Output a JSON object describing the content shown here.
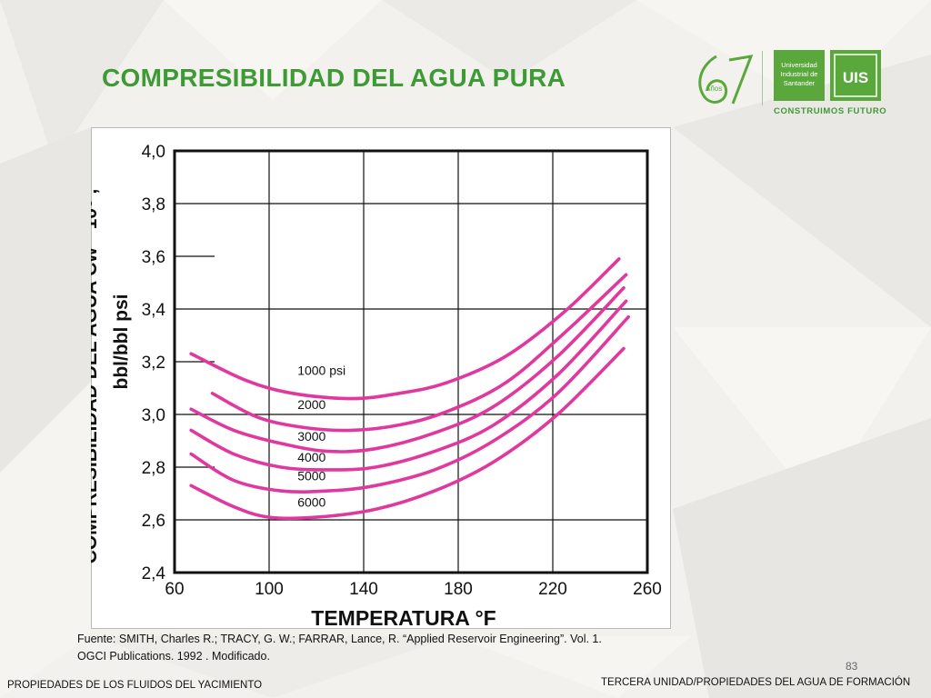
{
  "slide": {
    "title": "COMPRESIBILIDAD DEL AGUA PURA",
    "logo": {
      "anniversary_text": "Años",
      "university_name": "Universidad Industrial de Santander",
      "monogram": "UIS",
      "slogan": "CONSTRUIMOS FUTURO",
      "brand_color": "#5aa83c"
    },
    "caption_line1": "Fuente: SMITH, Charles R.; TRACY, G. W.; FARRAR, Lance, R. “Applied Reservoir Engineering”. Vol. 1.",
    "caption_line2": "OGCI Publications. 1992 . Modificado.",
    "page_number": "83",
    "footer_left": "PROPIEDADES DE LOS FLUIDOS DEL YACIMIENTO",
    "footer_right": "TERCERA UNIDAD/PROPIEDADES DEL AGUA DE FORMACIÓN"
  },
  "chart_data": {
    "type": "line",
    "xlabel": "TEMPERATURA °F",
    "ylabel_line1": "COMPRESIBILIDAD DEL AGUA Cw * 10⁶ ,",
    "ylabel_line2": "bbl/bbl psi",
    "xlim": [
      60,
      260
    ],
    "ylim": [
      2.4,
      4.0
    ],
    "x_ticks": [
      60,
      100,
      140,
      180,
      220,
      260
    ],
    "x_tick_labels": [
      "60",
      "100",
      "140",
      "180",
      "220",
      "260"
    ],
    "y_ticks": [
      2.4,
      2.6,
      2.8,
      3.0,
      3.2,
      3.4,
      3.6,
      3.8,
      4.0
    ],
    "y_tick_labels": [
      "2,4",
      "2,6",
      "2,8",
      "3,0",
      "3,2",
      "3,4",
      "3,6",
      "3,8",
      "4,0"
    ],
    "grid": true,
    "line_color": "#e0389f",
    "series": [
      {
        "name": "1000 psi",
        "points": [
          [
            67,
            3.23
          ],
          [
            90,
            3.13
          ],
          [
            110,
            3.08
          ],
          [
            135,
            3.06
          ],
          [
            155,
            3.08
          ],
          [
            175,
            3.12
          ],
          [
            200,
            3.22
          ],
          [
            225,
            3.39
          ],
          [
            248,
            3.59
          ]
        ]
      },
      {
        "name": "2000",
        "points": [
          [
            76,
            3.08
          ],
          [
            95,
            2.99
          ],
          [
            115,
            2.95
          ],
          [
            135,
            2.94
          ],
          [
            155,
            2.96
          ],
          [
            175,
            3.01
          ],
          [
            200,
            3.12
          ],
          [
            225,
            3.31
          ],
          [
            251,
            3.53
          ]
        ]
      },
      {
        "name": "3000",
        "points": [
          [
            67,
            3.02
          ],
          [
            85,
            2.94
          ],
          [
            105,
            2.89
          ],
          [
            125,
            2.86
          ],
          [
            145,
            2.87
          ],
          [
            170,
            2.93
          ],
          [
            195,
            3.03
          ],
          [
            222,
            3.22
          ],
          [
            250,
            3.48
          ]
        ]
      },
      {
        "name": "4000",
        "points": [
          [
            67,
            2.94
          ],
          [
            85,
            2.85
          ],
          [
            105,
            2.8
          ],
          [
            125,
            2.79
          ],
          [
            145,
            2.8
          ],
          [
            170,
            2.86
          ],
          [
            195,
            2.96
          ],
          [
            222,
            3.15
          ],
          [
            251,
            3.43
          ]
        ]
      },
      {
        "name": "5000",
        "points": [
          [
            67,
            2.85
          ],
          [
            85,
            2.75
          ],
          [
            105,
            2.71
          ],
          [
            125,
            2.71
          ],
          [
            145,
            2.73
          ],
          [
            170,
            2.79
          ],
          [
            195,
            2.9
          ],
          [
            222,
            3.08
          ],
          [
            252,
            3.37
          ]
        ]
      },
      {
        "name": "6000",
        "points": [
          [
            67,
            2.73
          ],
          [
            85,
            2.65
          ],
          [
            100,
            2.61
          ],
          [
            120,
            2.61
          ],
          [
            145,
            2.64
          ],
          [
            170,
            2.71
          ],
          [
            195,
            2.82
          ],
          [
            222,
            3.0
          ],
          [
            250,
            3.25
          ]
        ]
      }
    ],
    "series_labels": [
      {
        "text": "1000 psi",
        "x": 112,
        "y": 3.15
      },
      {
        "text": "2000",
        "x": 112,
        "y": 3.02
      },
      {
        "text": "3000",
        "x": 112,
        "y": 2.9
      },
      {
        "text": "4000",
        "x": 112,
        "y": 2.82
      },
      {
        "text": "5000",
        "x": 112,
        "y": 2.75
      },
      {
        "text": "6000",
        "x": 112,
        "y": 2.65
      }
    ]
  }
}
